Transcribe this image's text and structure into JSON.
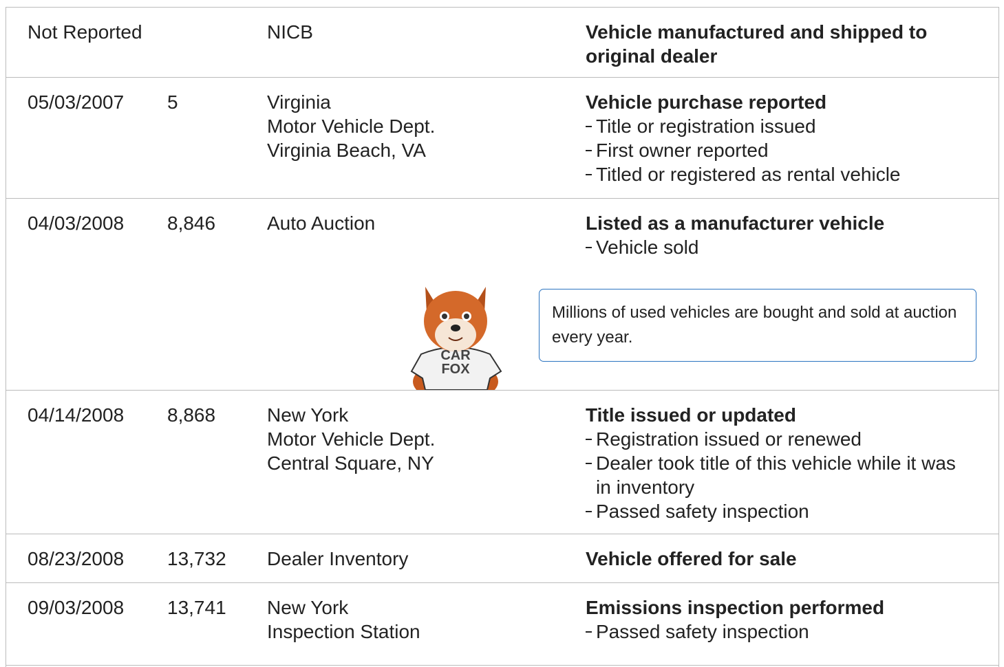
{
  "rows": [
    {
      "date": "Not Reported",
      "source": [
        "NICB"
      ],
      "event": "Vehicle manufactured and shipped to original dealer",
      "details": []
    },
    {
      "date": "05/03/2007",
      "mileage": "5",
      "source": [
        "Virginia",
        "Motor Vehicle Dept.",
        "Virginia Beach, VA"
      ],
      "event": "Vehicle purchase reported",
      "details": [
        "Title or registration issued",
        "First owner reported",
        "Titled or registered as rental vehicle"
      ]
    },
    {
      "date": "04/03/2008",
      "mileage": "8,846",
      "source": [
        "Auto Auction"
      ],
      "event": "Listed as a manufacturer vehicle",
      "details": [
        "Vehicle sold"
      ]
    },
    {
      "date": "04/14/2008",
      "mileage": "8,868",
      "source": [
        "New York",
        "Motor Vehicle Dept.",
        "Central Square, NY"
      ],
      "event": "Title issued or updated",
      "details": [
        "Registration issued or renewed",
        "Dealer took title of this vehicle while it was in inventory",
        "Passed safety inspection"
      ]
    },
    {
      "date": "08/23/2008",
      "mileage": "13,732",
      "source": [
        "Dealer Inventory"
      ],
      "event": "Vehicle offered for sale",
      "details": []
    },
    {
      "date": "09/03/2008",
      "mileage": "13,741",
      "source": [
        "New York",
        "Inspection Station"
      ],
      "event": "Emissions inspection performed",
      "details": [
        "Passed safety inspection"
      ]
    }
  ],
  "callout": {
    "text": "Millions of used vehicles are bought and sold at auction every year.",
    "shirt": [
      "CAR",
      "FOX"
    ]
  }
}
